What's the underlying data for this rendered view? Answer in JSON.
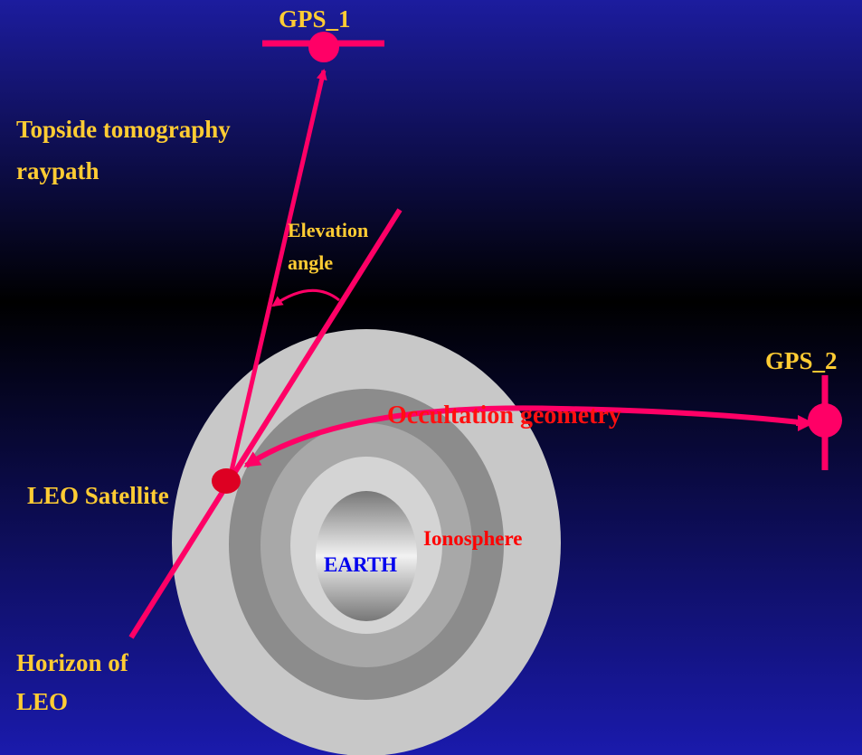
{
  "labels": {
    "gps1": "GPS_1",
    "topside": [
      "Topside tomography",
      "raypath"
    ],
    "elevation": [
      "Elevation",
      "angle"
    ],
    "gps2": "GPS_2",
    "occultation": "Occultation geometry",
    "leo": "LEO Satellite",
    "ionosphere": "Ionosphere",
    "earth": "EARTH",
    "horizon": [
      "Horizon of",
      "LEO"
    ]
  }
}
